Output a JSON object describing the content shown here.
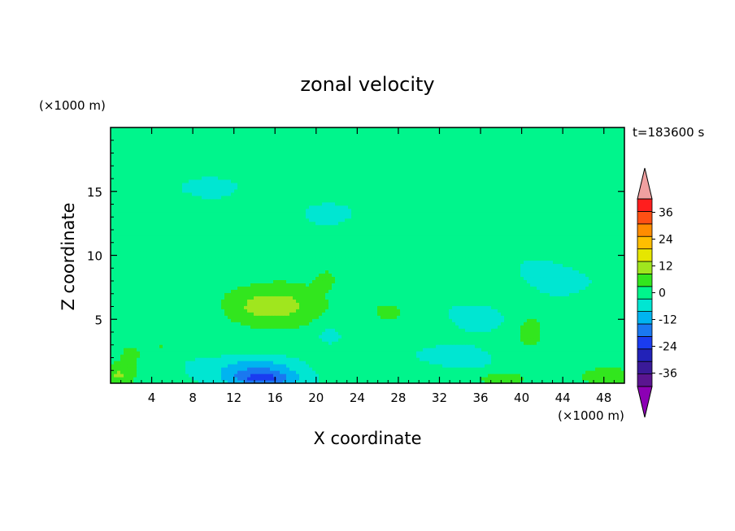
{
  "chart_data": {
    "type": "heatmap",
    "title": "zonal velocity",
    "xlabel": "X coordinate",
    "ylabel": "Z coordinate",
    "x_unit": "(×1000 m)",
    "y_unit": "(×1000 m)",
    "time_label": "t=183600 s",
    "xlim": [
      0,
      50
    ],
    "ylim": [
      0,
      20
    ],
    "x_ticks": [
      4,
      8,
      12,
      16,
      20,
      24,
      28,
      32,
      36,
      40,
      44,
      48
    ],
    "y_ticks": [
      5,
      10,
      15
    ],
    "colorbar": {
      "levels": [
        -42,
        -36,
        -30,
        -24,
        -18,
        -12,
        -6,
        0,
        6,
        12,
        18,
        24,
        30,
        36,
        42
      ],
      "labels": [
        "36",
        "24",
        "12",
        "0",
        "-12",
        "-24",
        "-36"
      ],
      "label_values": [
        36,
        24,
        12,
        0,
        -12,
        -24,
        -36
      ],
      "colors": [
        "#5a1590",
        "#3a1a98",
        "#2222b8",
        "#1a3cf0",
        "#1a78f0",
        "#00b4f0",
        "#00e6d2",
        "#00f58c",
        "#32e61e",
        "#a0e61e",
        "#e6e600",
        "#ffbe00",
        "#ff8c00",
        "#ff5014",
        "#ff1e1e"
      ],
      "under_color": "#8c00b4",
      "over_color": "#f0a0a0"
    },
    "features": [
      {
        "x": 16,
        "z": 6,
        "sx": 5.5,
        "sz": 2.2,
        "value": 10
      },
      {
        "x": 15,
        "z": 6,
        "sx": 2.6,
        "sz": 0.9,
        "value": 6
      },
      {
        "x": 21,
        "z": 8.2,
        "sx": 1.2,
        "sz": 0.9,
        "value": 6
      },
      {
        "x": 14,
        "z": 0.9,
        "sx": 4.2,
        "sz": 1.1,
        "value": -14
      },
      {
        "x": 15,
        "z": 0.3,
        "sx": 2.8,
        "sz": 0.5,
        "value": -12
      },
      {
        "x": 3,
        "z": 5,
        "sx": 4,
        "sz": 3,
        "value": 3
      },
      {
        "x": 2,
        "z": 2.3,
        "sx": 1.6,
        "sz": 1,
        "value": 4
      },
      {
        "x": 5,
        "z": 2.8,
        "sx": 1.2,
        "sz": 0.8,
        "value": 4
      },
      {
        "x": 0.6,
        "z": 0.6,
        "sx": 1.6,
        "sz": 0.9,
        "value": 10
      },
      {
        "x": 38,
        "z": 0.4,
        "sx": 2.5,
        "sz": 0.6,
        "value": 9
      },
      {
        "x": 48,
        "z": 0.5,
        "sx": 3,
        "sz": 0.8,
        "value": 9
      },
      {
        "x": 41,
        "z": 4.2,
        "sx": 1.6,
        "sz": 1.5,
        "value": 7
      },
      {
        "x": 27,
        "z": 5.7,
        "sx": 2.3,
        "sz": 1.2,
        "value": 5
      },
      {
        "x": 36,
        "z": 5,
        "sx": 2.2,
        "sz": 0.9,
        "value": -5
      },
      {
        "x": 8,
        "z": 11,
        "sx": 6,
        "sz": 2,
        "value": 3
      },
      {
        "x": 36,
        "z": 14,
        "sx": 6,
        "sz": 1.6,
        "value": 3
      },
      {
        "x": 47,
        "z": 13,
        "sx": 4,
        "sz": 2,
        "value": 3
      },
      {
        "x": 30,
        "z": 16.5,
        "sx": 10,
        "sz": 1,
        "value": 3
      },
      {
        "x": 15,
        "z": 18,
        "sx": 10,
        "sz": 1,
        "value": 3
      },
      {
        "x": 40,
        "z": 19,
        "sx": 8,
        "sz": 0.7,
        "value": 3
      },
      {
        "x": 10,
        "z": 15.5,
        "sx": 4,
        "sz": 0.8,
        "value": -3
      },
      {
        "x": 22,
        "z": 13.5,
        "sx": 3,
        "sz": 0.8,
        "value": -3
      },
      {
        "x": 33,
        "z": 2.2,
        "sx": 4,
        "sz": 1,
        "value": -3
      },
      {
        "x": 21,
        "z": 4,
        "sx": 1.6,
        "sz": 1.2,
        "value": -4
      },
      {
        "x": 44,
        "z": 8,
        "sx": 5,
        "sz": 2,
        "value": -2
      }
    ]
  }
}
